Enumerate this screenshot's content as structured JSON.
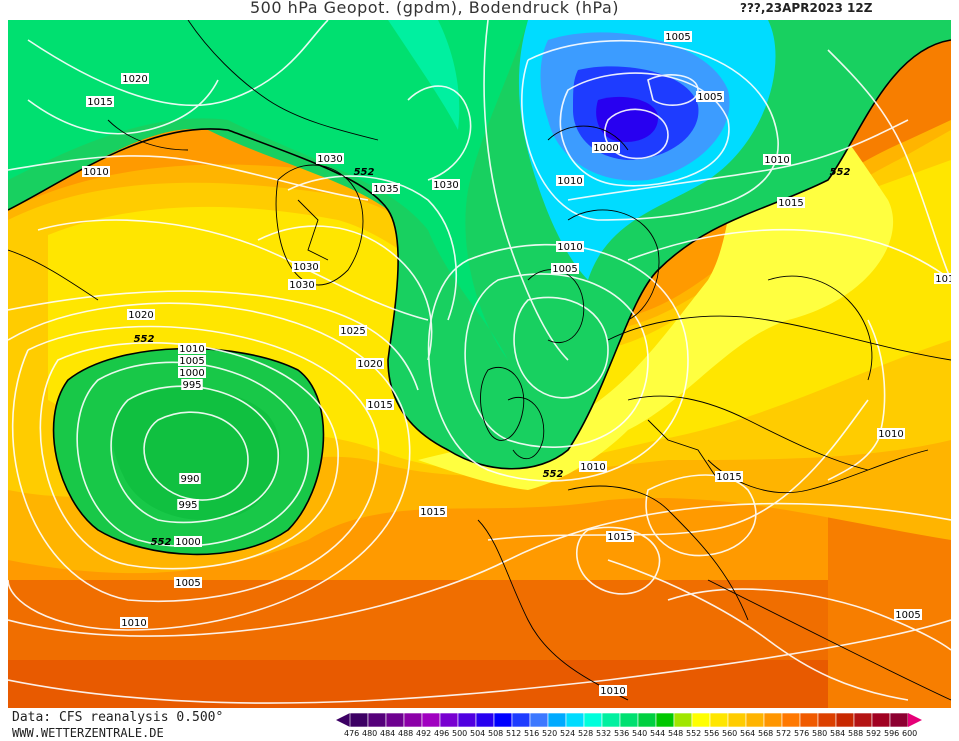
{
  "header": {
    "title": "500 hPa Geopot. (gpdm), Bodendruck (hPa)",
    "date": "???,23APR2023 12Z"
  },
  "footer": {
    "source": "Data: CFS reanalysis 0.500°",
    "website": "WWW.WETTERZENTRALE.DE"
  },
  "legend": {
    "values": [
      "476",
      "480",
      "484",
      "488",
      "492",
      "496",
      "500",
      "504",
      "508",
      "512",
      "516",
      "520",
      "524",
      "528",
      "532",
      "536",
      "540",
      "544",
      "548",
      "552",
      "556",
      "560",
      "564",
      "568",
      "572",
      "576",
      "580",
      "584",
      "588",
      "592",
      "596",
      "600"
    ],
    "colors": [
      "#3c0064",
      "#55007a",
      "#6e0090",
      "#8c00a8",
      "#a000c0",
      "#7800d0",
      "#5000e0",
      "#2800f0",
      "#0000ff",
      "#1e3cff",
      "#3c78ff",
      "#00aaff",
      "#00dcff",
      "#00ffdc",
      "#00f0a0",
      "#00e070",
      "#00d040",
      "#00c800",
      "#a0e600",
      "#ffff00",
      "#ffe600",
      "#ffcc00",
      "#ffb400",
      "#ff9600",
      "#ff7800",
      "#f05a00",
      "#dc4000",
      "#c82800",
      "#b41414",
      "#a00020",
      "#8c0030",
      "#e60078"
    ]
  },
  "map_labels": {
    "isobars": [
      "1020",
      "1015",
      "1010",
      "1030",
      "1035",
      "1030",
      "1030",
      "1030",
      "1020",
      "1025",
      "1020",
      "1015",
      "1010",
      "1005",
      "1000",
      "995",
      "990",
      "995",
      "1000",
      "1005",
      "1010",
      "1005",
      "1000",
      "1010",
      "1010",
      "1005",
      "1010",
      "1015",
      "1010",
      "1015",
      "1015",
      "1015",
      "1010",
      "1005",
      "1010",
      "1005",
      "1010"
    ],
    "geopotential": [
      "552",
      "552",
      "552",
      "552",
      "552"
    ]
  }
}
